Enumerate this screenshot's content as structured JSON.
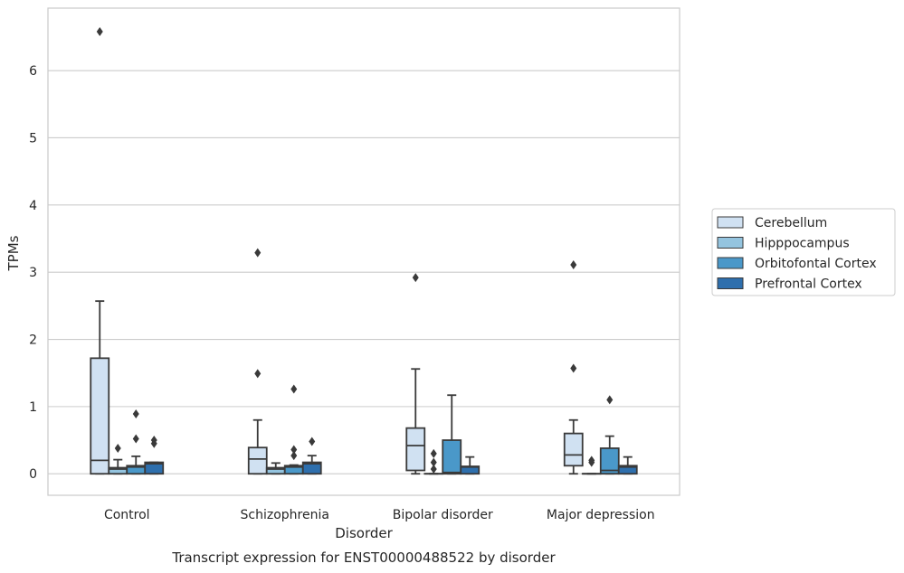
{
  "chart_data": {
    "type": "box",
    "title": "",
    "caption": "Transcript expression for ENST00000488522 by disorder",
    "xlabel": "Disorder",
    "ylabel": "TPMs",
    "ylim": [
      -0.32,
      6.93
    ],
    "yticks": [
      0,
      1,
      2,
      3,
      4,
      5,
      6
    ],
    "grid": true,
    "legend_position": "right",
    "categories": [
      "Control",
      "Schizophrenia",
      "Bipolar disorder",
      "Major depression"
    ],
    "series": [
      {
        "name": "Cerebellum",
        "color": "#d0e1f2",
        "boxes": [
          {
            "whislo": 0,
            "q1": 0,
            "med": 0.2,
            "q3": 1.72,
            "whishi": 2.57,
            "fliers": [
              6.58
            ]
          },
          {
            "whislo": 0,
            "q1": 0,
            "med": 0.22,
            "q3": 0.39,
            "whishi": 0.8,
            "fliers": [
              1.49,
              3.29
            ]
          },
          {
            "whislo": 0,
            "q1": 0.05,
            "med": 0.42,
            "q3": 0.68,
            "whishi": 1.56,
            "fliers": [
              2.92
            ]
          },
          {
            "whislo": 0,
            "q1": 0.12,
            "med": 0.28,
            "q3": 0.6,
            "whishi": 0.8,
            "fliers": [
              1.57,
              3.11
            ]
          }
        ]
      },
      {
        "name": "Hipppocampus",
        "color": "#94c4df",
        "boxes": [
          {
            "whislo": 0,
            "q1": 0,
            "med": 0.07,
            "q3": 0.09,
            "whishi": 0.21,
            "fliers": [
              0.38
            ]
          },
          {
            "whislo": 0,
            "q1": 0,
            "med": 0.07,
            "q3": 0.09,
            "whishi": 0.16,
            "fliers": []
          },
          {
            "whislo": 0,
            "q1": 0,
            "med": 0,
            "q3": 0,
            "whishi": 0,
            "fliers": [
              0.07,
              0.17,
              0.3
            ]
          },
          {
            "whislo": 0,
            "q1": 0,
            "med": 0,
            "q3": 0,
            "whishi": 0,
            "fliers": [
              0.17,
              0.2
            ]
          }
        ]
      },
      {
        "name": "Orbitofontal Cortex",
        "color": "#4a98c9",
        "boxes": [
          {
            "whislo": 0,
            "q1": 0,
            "med": 0.1,
            "q3": 0.12,
            "whishi": 0.26,
            "fliers": [
              0.52,
              0.89
            ]
          },
          {
            "whislo": 0,
            "q1": 0,
            "med": 0.1,
            "q3": 0.12,
            "whishi": 0.13,
            "fliers": [
              0.27,
              0.36,
              1.26
            ]
          },
          {
            "whislo": 0,
            "q1": 0,
            "med": 0.02,
            "q3": 0.5,
            "whishi": 1.17,
            "fliers": []
          },
          {
            "whislo": 0,
            "q1": 0,
            "med": 0.05,
            "q3": 0.38,
            "whishi": 0.56,
            "fliers": [
              1.1
            ]
          }
        ]
      },
      {
        "name": "Prefrontal Cortex",
        "color": "#2e6fad",
        "boxes": [
          {
            "whislo": 0,
            "q1": 0,
            "med": 0.15,
            "q3": 0.17,
            "whishi": 0.17,
            "fliers": [
              0.45,
              0.5
            ]
          },
          {
            "whislo": 0,
            "q1": 0,
            "med": 0.15,
            "q3": 0.17,
            "whishi": 0.27,
            "fliers": [
              0.48
            ]
          },
          {
            "whislo": 0,
            "q1": 0,
            "med": 0.1,
            "q3": 0.11,
            "whishi": 0.25,
            "fliers": []
          },
          {
            "whislo": 0,
            "q1": 0,
            "med": 0.1,
            "q3": 0.12,
            "whishi": 0.25,
            "fliers": []
          }
        ]
      }
    ]
  }
}
